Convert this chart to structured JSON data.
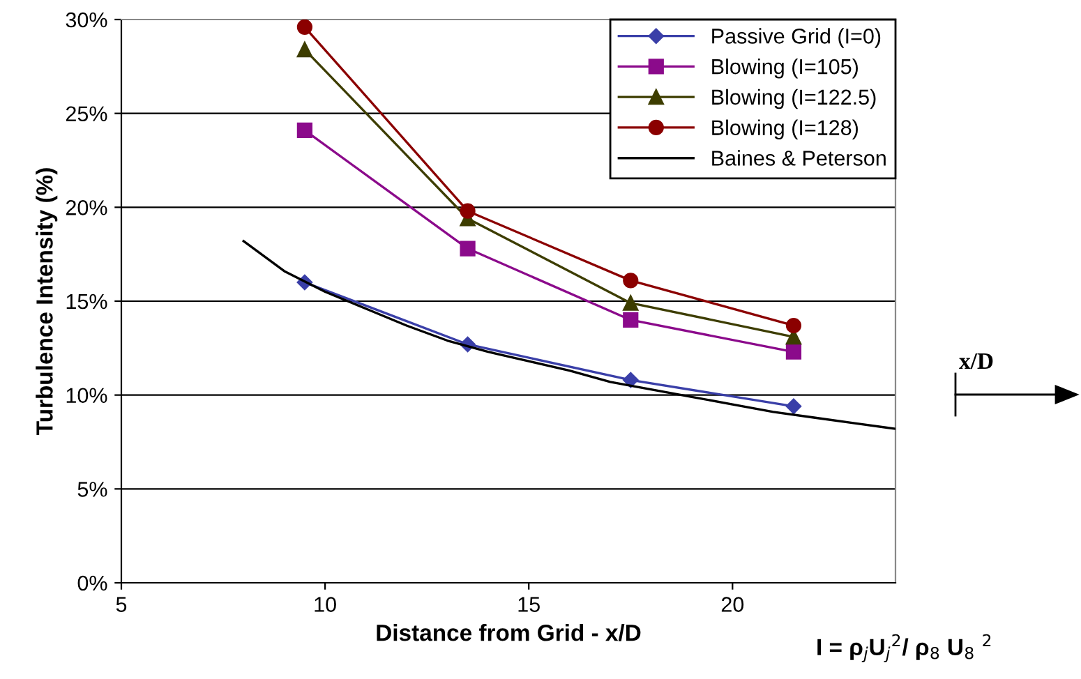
{
  "chart_data": {
    "type": "line",
    "xlabel": "Distance from Grid - x/D",
    "ylabel": "Turbulence Intensity (%)",
    "xlim": [
      5,
      24
    ],
    "xticks": [
      5,
      10,
      15,
      20
    ],
    "ylim": [
      0,
      30
    ],
    "yticks": [
      {
        "value": 0,
        "label": "0%"
      },
      {
        "value": 5,
        "label": "5%"
      },
      {
        "value": 10,
        "label": "10%"
      },
      {
        "value": 15,
        "label": "15%"
      },
      {
        "value": 20,
        "label": "20%"
      },
      {
        "value": 25,
        "label": "25%"
      },
      {
        "value": 30,
        "label": "30%"
      }
    ],
    "grid": "y",
    "legend": "top right",
    "x": [
      9.5,
      13.5,
      17.5,
      21.5
    ],
    "series": [
      {
        "name": "Passive Grid (I=0)",
        "color": "#3a3fa8",
        "marker": "diamond",
        "values": [
          16.0,
          12.7,
          10.8,
          9.4
        ]
      },
      {
        "name": "Blowing (I=105)",
        "color": "#8b0a8b",
        "marker": "square",
        "values": [
          24.1,
          17.8,
          14.0,
          12.3
        ]
      },
      {
        "name": "Blowing (I=122.5)",
        "color": "#3d3d00",
        "marker": "triangle",
        "values": [
          28.4,
          19.4,
          14.9,
          13.1
        ]
      },
      {
        "name": "Blowing (I=128)",
        "color": "#8b0000",
        "marker": "circle",
        "values": [
          29.6,
          19.8,
          16.1,
          13.7
        ]
      },
      {
        "name": "Baines & Peterson",
        "color": "#000000",
        "marker": "none",
        "x": [
          8,
          9,
          10,
          11,
          12,
          13,
          14,
          15,
          16,
          17,
          18,
          19,
          20,
          21,
          22,
          23,
          24
        ],
        "values": [
          18.2,
          16.6,
          15.5,
          14.6,
          13.7,
          12.9,
          12.3,
          11.8,
          11.3,
          10.7,
          10.3,
          9.9,
          9.5,
          9.1,
          8.8,
          8.5,
          8.2
        ]
      }
    ],
    "annotations": [
      "x/D",
      "I = ρ$_{j}$U$_{j}$$^{2}$/ ρ$_{8}$ U$_{8}$ $^{2}$"
    ]
  }
}
